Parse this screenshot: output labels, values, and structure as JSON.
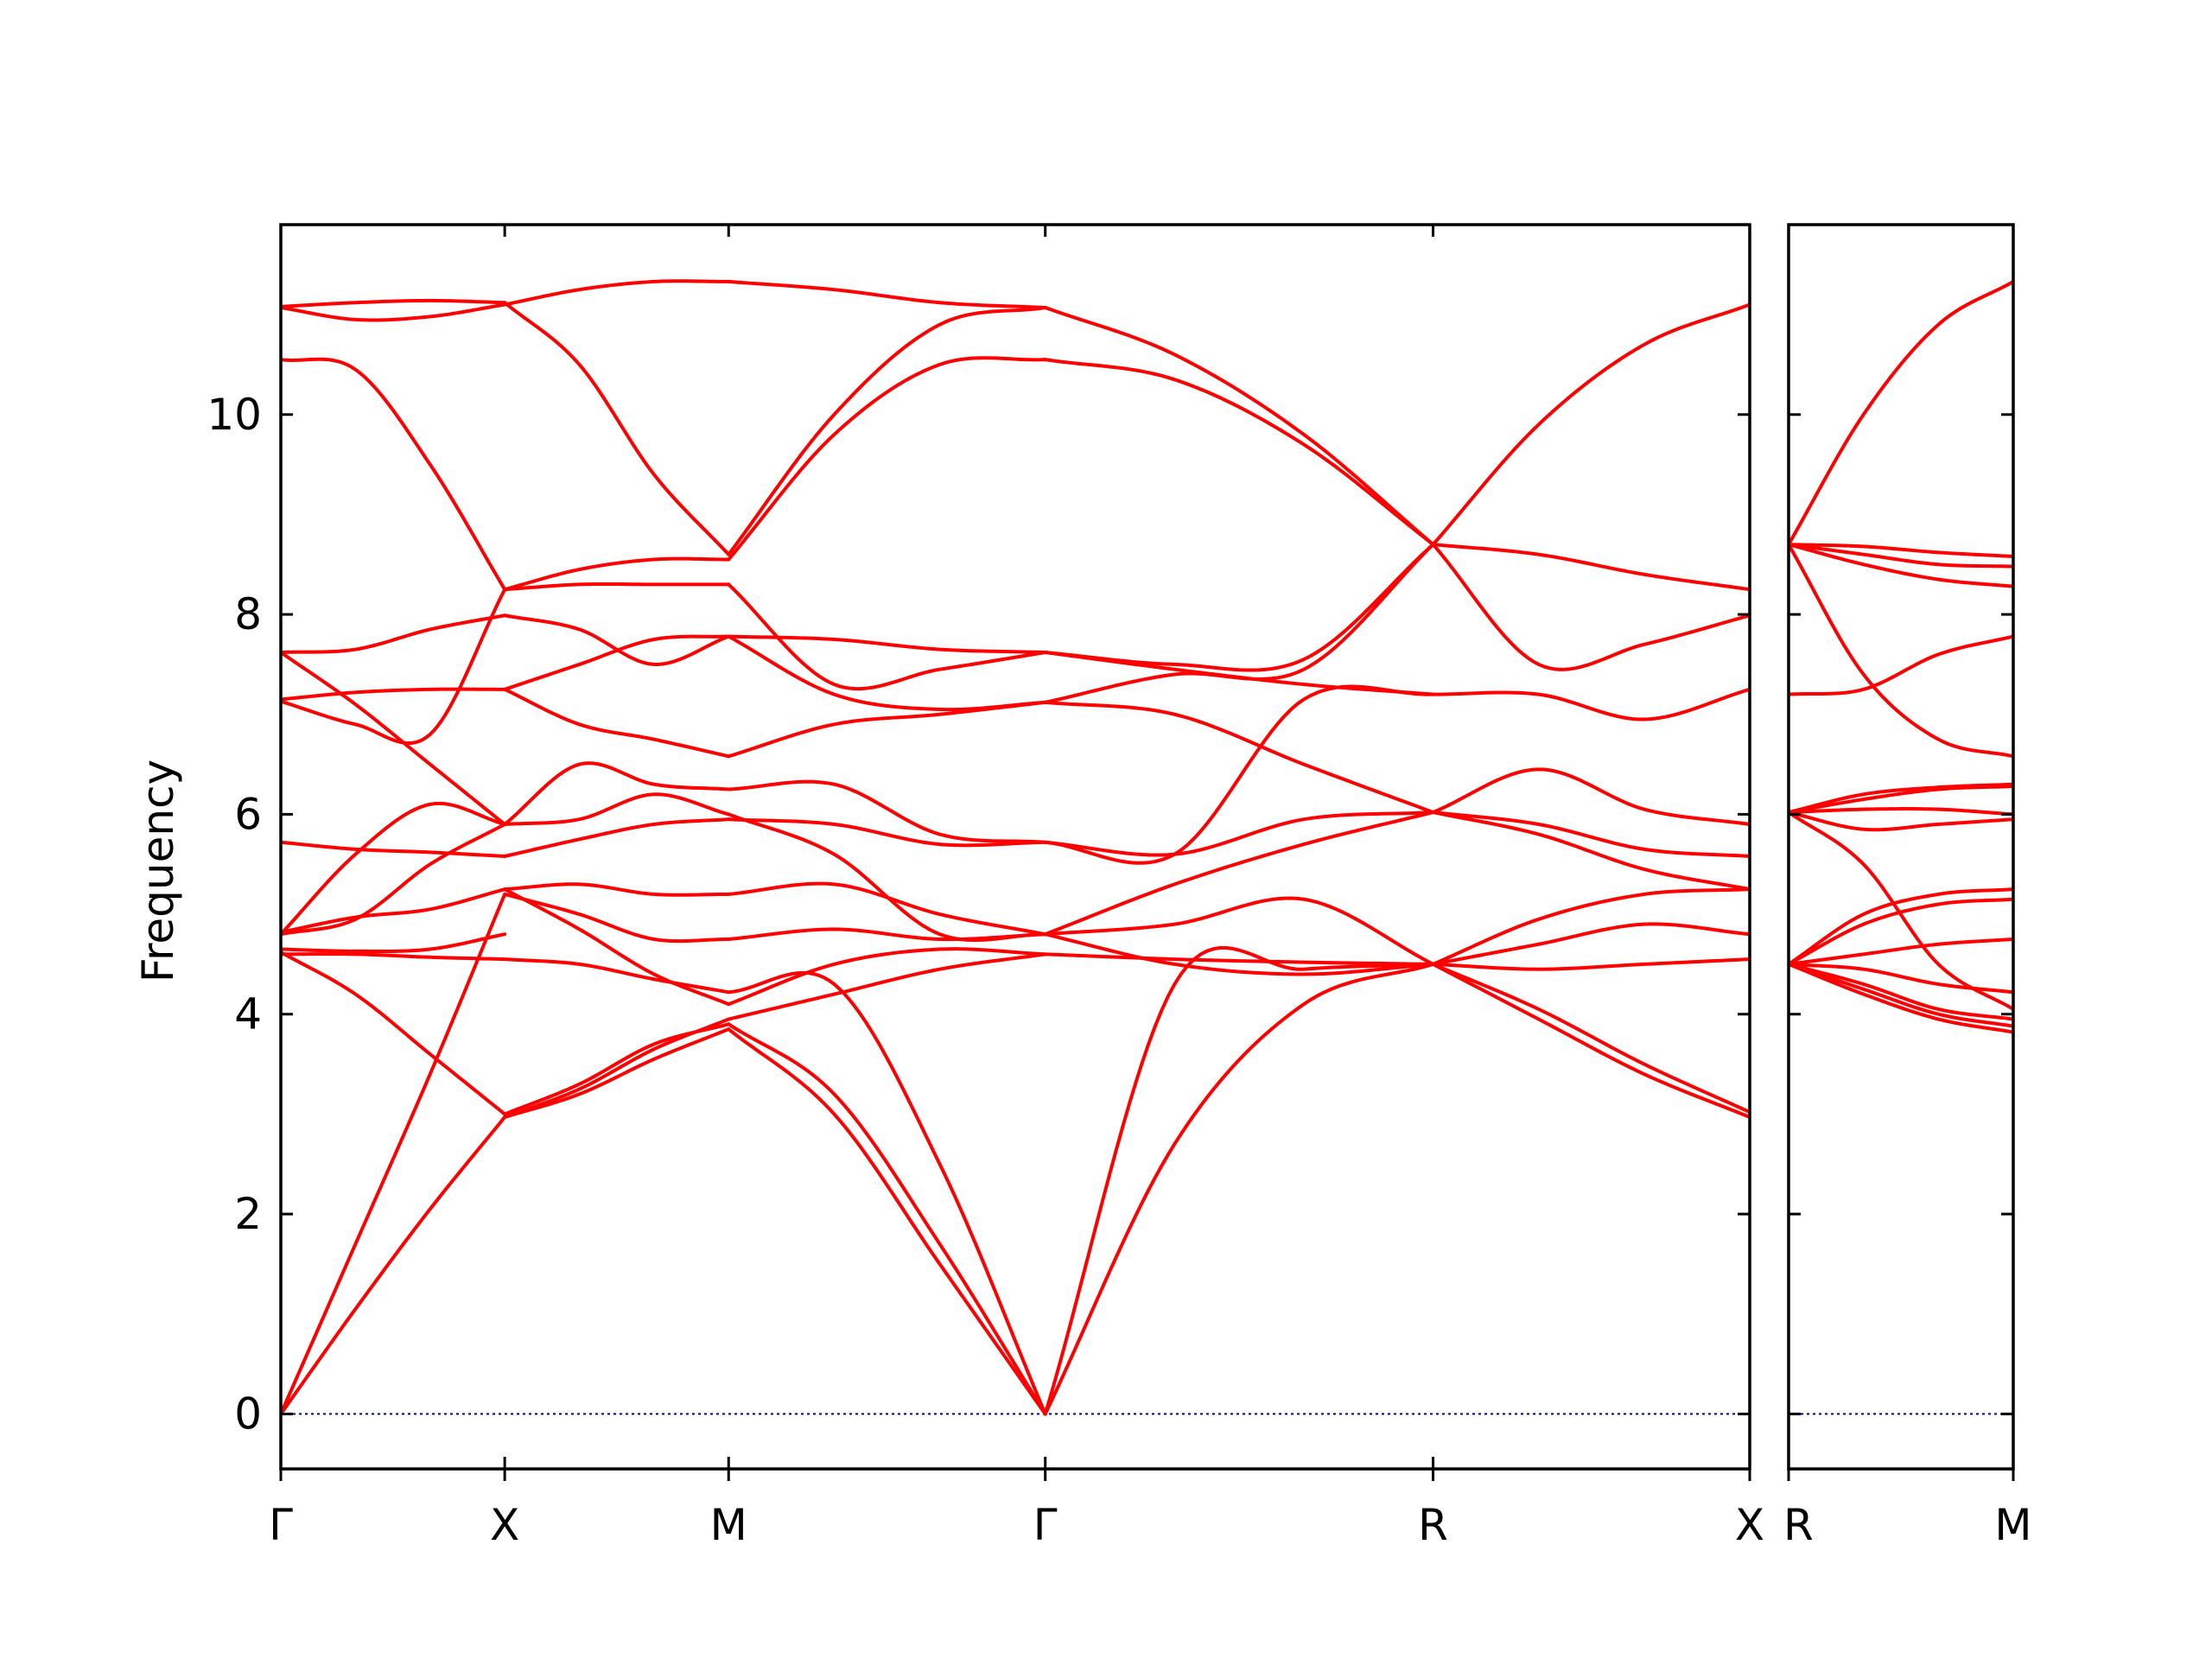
{
  "colors": {
    "band": "#ff0000",
    "zero_line": "#0000aa",
    "axes": "#000000",
    "background": "#ffffff"
  },
  "chart_data": {
    "type": "line",
    "title": "",
    "ylabel": "Frequency",
    "xlabel": "",
    "ylim": [
      -0.55,
      11.9
    ],
    "yticks": [
      0,
      2,
      4,
      6,
      8,
      10
    ],
    "ytick_labels": [
      "0",
      "2",
      "4",
      "6",
      "8",
      "10"
    ],
    "grid": false,
    "legend": "none",
    "panels": [
      {
        "name": "left",
        "path_labels": [
          "Γ",
          "X",
          "M",
          "Γ",
          "R",
          "X"
        ],
        "segments": [
          {
            "from": "Γ",
            "to": "X",
            "length": 1.0,
            "bands": [
              [
                0,
                1.05,
                2.05,
                2.97
              ],
              [
                0,
                1.7,
                3.4,
                5.2
              ],
              [
                4.6,
                4.6,
                4.57,
                4.55
              ],
              [
                4.62,
                4.2,
                3.6,
                3.0
              ],
              [
                4.65,
                4.63,
                4.65,
                4.8
              ],
              [
                4.8,
                4.95,
                5.5,
                5.9
              ],
              [
                4.8,
                5.6,
                6.1,
                5.9
              ],
              [
                4.82,
                4.97,
                5.05,
                5.25
              ],
              [
                5.72,
                5.65,
                5.62,
                5.58
              ],
              [
                7.13,
                6.9,
                6.8,
                8.25
              ],
              [
                7.15,
                7.22,
                7.25,
                7.25
              ],
              [
                7.62,
                7.65,
                7.85,
                7.99
              ],
              [
                7.62,
                7.1,
                6.5,
                5.9
              ],
              [
                10.55,
                10.45,
                9.5,
                8.25
              ],
              [
                11.07,
                10.95,
                10.98,
                11.1
              ],
              [
                11.08,
                11.12,
                11.14,
                11.12
              ]
            ]
          },
          {
            "from": "X",
            "to": "M",
            "length": 1.0,
            "bands": [
              [
                2.97,
                3.2,
                3.55,
                3.85
              ],
              [
                2.97,
                3.25,
                3.65,
                3.95
              ],
              [
                3.0,
                3.3,
                3.7,
                3.9
              ],
              [
                4.55,
                4.5,
                4.35,
                4.22
              ],
              [
                5.25,
                4.85,
                4.4,
                4.1
              ],
              [
                5.2,
                5.0,
                4.75,
                4.75
              ],
              [
                5.25,
                5.3,
                5.2,
                5.2
              ],
              [
                5.58,
                5.75,
                5.9,
                5.95
              ],
              [
                5.9,
                6.5,
                6.3,
                6.25
              ],
              [
                5.9,
                5.95,
                6.2,
                6.0
              ],
              [
                7.25,
                6.9,
                6.75,
                6.58
              ],
              [
                7.99,
                7.85,
                7.5,
                7.78
              ],
              [
                7.25,
                7.5,
                7.75,
                7.78
              ],
              [
                8.25,
                8.3,
                8.3,
                8.3
              ],
              [
                8.25,
                8.45,
                8.55,
                8.55
              ],
              [
                11.12,
                10.5,
                9.4,
                8.6
              ],
              [
                11.1,
                11.25,
                11.33,
                11.33
              ]
            ]
          },
          {
            "from": "M",
            "to": "Γ",
            "length": 1.4142,
            "bands": [
              [
                3.85,
                3.0,
                1.5,
                0.0
              ],
              [
                3.9,
                3.2,
                1.7,
                0.0
              ],
              [
                4.22,
                4.3,
                2.5,
                0.0
              ],
              [
                4.1,
                4.5,
                4.65,
                4.6
              ],
              [
                3.95,
                4.2,
                4.45,
                4.6
              ],
              [
                4.75,
                4.85,
                4.75,
                4.8
              ],
              [
                5.2,
                5.3,
                5.0,
                4.8
              ],
              [
                5.95,
                5.9,
                5.7,
                5.72
              ],
              [
                6.25,
                6.3,
                5.8,
                5.72
              ],
              [
                6.0,
                5.6,
                4.8,
                4.8
              ],
              [
                6.58,
                6.9,
                7.0,
                7.12
              ],
              [
                7.78,
                7.2,
                7.05,
                7.12
              ],
              [
                7.78,
                7.75,
                7.65,
                7.62
              ],
              [
                8.3,
                7.3,
                7.45,
                7.62
              ],
              [
                8.55,
                9.8,
                10.5,
                10.55
              ],
              [
                8.6,
                10.0,
                10.9,
                11.07
              ],
              [
                11.33,
                11.25,
                11.12,
                11.07
              ]
            ]
          },
          {
            "from": "Γ",
            "to": "R",
            "length": 1.7321,
            "bands": [
              [
                0.0,
                2.7,
                4.1,
                4.5
              ],
              [
                0.0,
                4.3,
                4.45,
                4.5
              ],
              [
                4.6,
                4.55,
                4.52,
                4.5
              ],
              [
                4.8,
                4.5,
                4.4,
                4.5
              ],
              [
                4.8,
                4.9,
                5.15,
                4.5
              ],
              [
                4.8,
                5.3,
                5.7,
                6.02
              ],
              [
                5.72,
                5.6,
                5.95,
                6.02
              ],
              [
                5.72,
                5.6,
                7.15,
                7.2
              ],
              [
                7.12,
                7.0,
                6.5,
                6.02
              ],
              [
                7.12,
                7.4,
                7.45,
                8.7
              ],
              [
                7.62,
                7.45,
                7.3,
                7.2
              ],
              [
                7.62,
                7.5,
                7.55,
                8.7
              ],
              [
                10.55,
                10.35,
                9.7,
                8.7
              ],
              [
                11.07,
                10.6,
                9.8,
                8.7
              ]
            ]
          },
          {
            "from": "R",
            "to": "X",
            "length": 1.4142,
            "bands": [
              [
                4.5,
                3.95,
                3.4,
                2.97
              ],
              [
                4.5,
                4.05,
                3.5,
                3.02
              ],
              [
                4.5,
                4.45,
                4.5,
                4.55
              ],
              [
                4.5,
                4.95,
                5.2,
                5.25
              ],
              [
                4.5,
                4.7,
                4.9,
                4.8
              ],
              [
                6.02,
                5.8,
                5.45,
                5.25
              ],
              [
                6.02,
                5.9,
                5.65,
                5.58
              ],
              [
                6.02,
                6.45,
                6.05,
                5.9
              ],
              [
                7.2,
                7.2,
                6.95,
                7.25
              ],
              [
                8.7,
                7.5,
                7.7,
                7.99
              ],
              [
                8.7,
                8.6,
                8.4,
                8.25
              ],
              [
                8.7,
                9.9,
                10.7,
                11.1
              ]
            ]
          }
        ]
      },
      {
        "name": "right",
        "path_labels": [
          "R",
          "M"
        ],
        "segments": [
          {
            "from": "R",
            "to": "M",
            "length": 1.0,
            "bands": [
              [
                4.5,
                4.2,
                3.95,
                3.82
              ],
              [
                4.5,
                4.25,
                4.0,
                3.88
              ],
              [
                4.5,
                4.3,
                4.05,
                3.95
              ],
              [
                4.5,
                4.45,
                4.3,
                4.22
              ],
              [
                4.5,
                4.6,
                4.7,
                4.75
              ],
              [
                4.5,
                4.9,
                5.1,
                5.15
              ],
              [
                4.5,
                5.0,
                5.2,
                5.25
              ],
              [
                6.02,
                5.5,
                4.5,
                4.05
              ],
              [
                6.02,
                5.85,
                5.9,
                5.95
              ],
              [
                6.02,
                6.05,
                6.05,
                6.0
              ],
              [
                6.02,
                6.15,
                6.25,
                6.28
              ],
              [
                6.02,
                6.2,
                6.27,
                6.3
              ],
              [
                7.2,
                7.25,
                7.6,
                7.78
              ],
              [
                8.7,
                7.4,
                6.75,
                6.58
              ],
              [
                8.7,
                8.5,
                8.35,
                8.28
              ],
              [
                8.7,
                8.6,
                8.5,
                8.48
              ],
              [
                8.7,
                8.68,
                8.62,
                8.58
              ],
              [
                8.7,
                10.0,
                10.9,
                11.33
              ]
            ]
          }
        ]
      }
    ]
  }
}
